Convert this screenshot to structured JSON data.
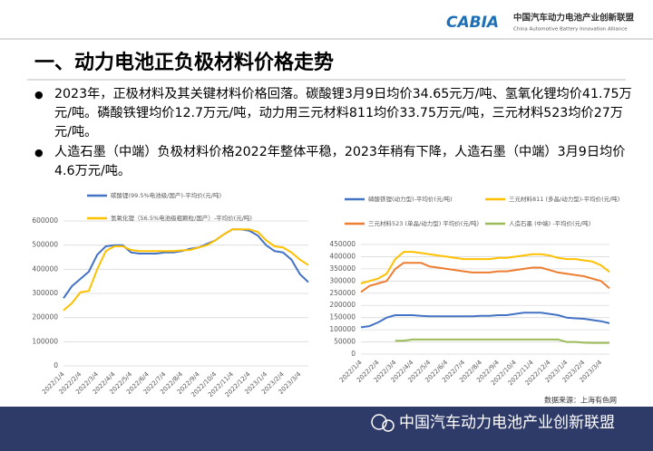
{
  "header": {
    "logo": "CABIA",
    "org_cn": "中国汽车动力电池产业创新联盟",
    "org_en": "China Automotive Battery Innovation Alliance"
  },
  "title": "一、动力电池正负极材料价格走势",
  "bullets": [
    "2023年，正极材料及其关键材料价格回落。碳酸锂3月9日均价34.65元万/吨、氢氧化锂均价41.75万元/吨。磷酸铁锂均价12.7万元/吨，动力用三元材料811均价33.75万元/吨，三元材料523均价27万元/吨。",
    "人造石墨（中端）负极材料价格2022年整体平稳，2023年稍有下降，人造石墨（中端）3月9日均价4.6万元/吨。"
  ],
  "source": "数据来源：上海有色网",
  "footer": "中国汽车动力电池产业创新联盟",
  "chart_data": [
    {
      "type": "line",
      "categories": [
        "2022/1/4",
        null,
        "2022/2/4",
        null,
        "2022/3/4",
        null,
        "2022/4/4",
        null,
        "2022/5/4",
        null,
        "2022/6/4",
        null,
        "2022/7/4",
        null,
        "2022/8/4",
        null,
        "2022/9/4",
        null,
        "2022/10/4",
        null,
        "2022/11/4",
        null,
        "2022/12/4",
        null,
        "2023/1/4",
        null,
        "2023/2/4",
        null,
        "2023/3/4",
        null
      ],
      "ylim": [
        0,
        600000
      ],
      "yticks": [
        0,
        100000,
        200000,
        300000,
        400000,
        500000,
        600000
      ],
      "grid": true,
      "series": [
        {
          "name": "碳酸锂(99.5%电池级/国产)-平均价(元/吨)",
          "color": "#4472c4",
          "values": [
            280000,
            330000,
            360000,
            390000,
            460000,
            495000,
            500000,
            500000,
            470000,
            465000,
            465000,
            465000,
            470000,
            470000,
            475000,
            485000,
            490000,
            505000,
            520000,
            545000,
            565000,
            565000,
            560000,
            540000,
            500000,
            475000,
            470000,
            440000,
            380000,
            346500
          ]
        },
        {
          "name": "氢氧化锂（56.5%电池级粗颗粒/国产）-平均价(元/吨)",
          "color": "#ffc000",
          "values": [
            230000,
            260000,
            305000,
            310000,
            400000,
            475000,
            495000,
            495000,
            480000,
            475000,
            475000,
            475000,
            475000,
            475000,
            478000,
            480000,
            490000,
            500000,
            520000,
            545000,
            565000,
            565000,
            565000,
            555000,
            520000,
            495000,
            490000,
            470000,
            440000,
            417500
          ]
        }
      ]
    },
    {
      "type": "line",
      "categories": [
        "2022/1/4",
        null,
        "2022/2/4",
        null,
        "2022/3/4",
        null,
        "2022/4/4",
        null,
        "2022/5/4",
        null,
        "2022/6/4",
        null,
        "2022/7/4",
        null,
        "2022/8/4",
        null,
        "2022/9/4",
        null,
        "2022/10/4",
        null,
        "2022/11/4",
        null,
        "2022/12/4",
        null,
        "2023/1/4",
        null,
        "2023/2/4",
        null,
        "2023/3/4",
        null
      ],
      "ylim": [
        0,
        450000
      ],
      "yticks": [
        0,
        50000,
        100000,
        150000,
        200000,
        250000,
        300000,
        350000,
        400000,
        450000
      ],
      "grid": true,
      "series": [
        {
          "name": "磷酸铁锂(动力型)-平均价(元/吨)",
          "color": "#4472c4",
          "values": [
            110000,
            115000,
            130000,
            150000,
            160000,
            160000,
            160000,
            157000,
            155000,
            155000,
            155000,
            155000,
            155000,
            155000,
            157000,
            157000,
            160000,
            160000,
            165000,
            170000,
            170000,
            170000,
            165000,
            160000,
            150000,
            147000,
            145000,
            140000,
            135000,
            127000
          ]
        },
        {
          "name": "三元材料811 (多晶/动力型)-平均价(元/吨)",
          "color": "#ffc000",
          "values": [
            290000,
            300000,
            310000,
            330000,
            390000,
            420000,
            420000,
            415000,
            410000,
            405000,
            400000,
            395000,
            390000,
            390000,
            390000,
            390000,
            395000,
            395000,
            400000,
            405000,
            410000,
            410000,
            405000,
            395000,
            390000,
            390000,
            385000,
            380000,
            365000,
            337500
          ]
        },
        {
          "name": "三元材料523 (单晶/动力型) 平均价(元/吨)",
          "color": "#ed7d31",
          "values": [
            255000,
            280000,
            290000,
            300000,
            350000,
            375000,
            375000,
            375000,
            360000,
            355000,
            350000,
            345000,
            340000,
            335000,
            335000,
            335000,
            340000,
            340000,
            345000,
            350000,
            355000,
            355000,
            345000,
            335000,
            330000,
            325000,
            320000,
            310000,
            300000,
            270000
          ]
        },
        {
          "name": "人造石墨 (中端) -平均价(元/吨)",
          "color": "#9bbb59",
          "values": [
            null,
            null,
            null,
            null,
            55000,
            55000,
            60000,
            60000,
            60000,
            60000,
            60000,
            60000,
            60000,
            60000,
            60000,
            60000,
            60000,
            60000,
            60000,
            60000,
            60000,
            60000,
            60000,
            60000,
            50000,
            50000,
            47000,
            46000,
            46000,
            46000
          ]
        }
      ]
    }
  ]
}
